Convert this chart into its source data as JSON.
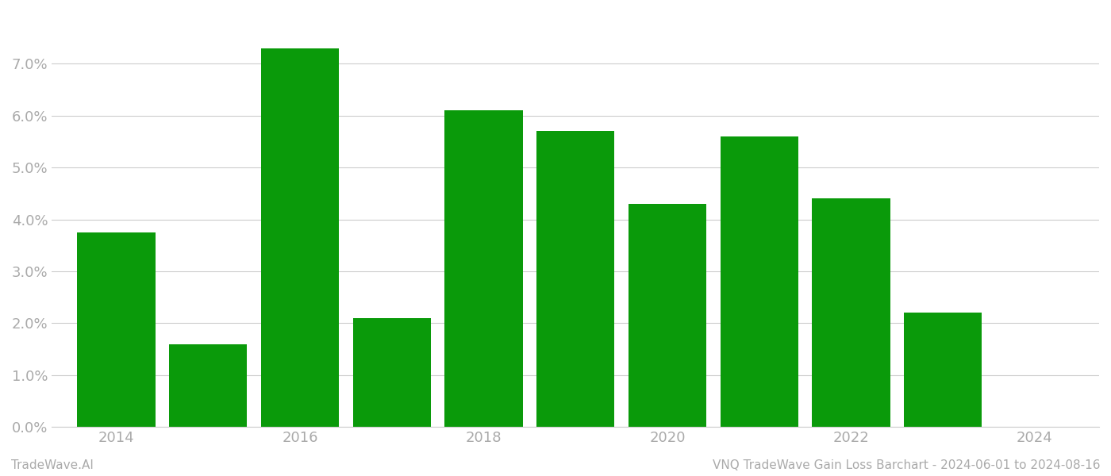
{
  "years": [
    2014,
    2015,
    2016,
    2017,
    2018,
    2019,
    2020,
    2021,
    2022,
    2023
  ],
  "values": [
    0.0375,
    0.016,
    0.073,
    0.021,
    0.061,
    0.057,
    0.043,
    0.056,
    0.044,
    0.022
  ],
  "bar_color": "#0a9a0a",
  "background_color": "#ffffff",
  "grid_color": "#cccccc",
  "ylim": [
    0,
    0.08
  ],
  "yticks": [
    0.0,
    0.01,
    0.02,
    0.03,
    0.04,
    0.05,
    0.06,
    0.07
  ],
  "xtick_labels": [
    "2014",
    "2016",
    "2018",
    "2020",
    "2022",
    "2024"
  ],
  "xtick_positions": [
    2014,
    2016,
    2018,
    2020,
    2022,
    2024
  ],
  "xlim_left": 2013.3,
  "xlim_right": 2024.7,
  "bar_width": 0.85,
  "bottom_left_text": "TradeWave.AI",
  "bottom_right_text": "VNQ TradeWave Gain Loss Barchart - 2024-06-01 to 2024-08-16",
  "text_color": "#aaaaaa",
  "tick_fontsize": 13,
  "footer_fontsize": 11
}
